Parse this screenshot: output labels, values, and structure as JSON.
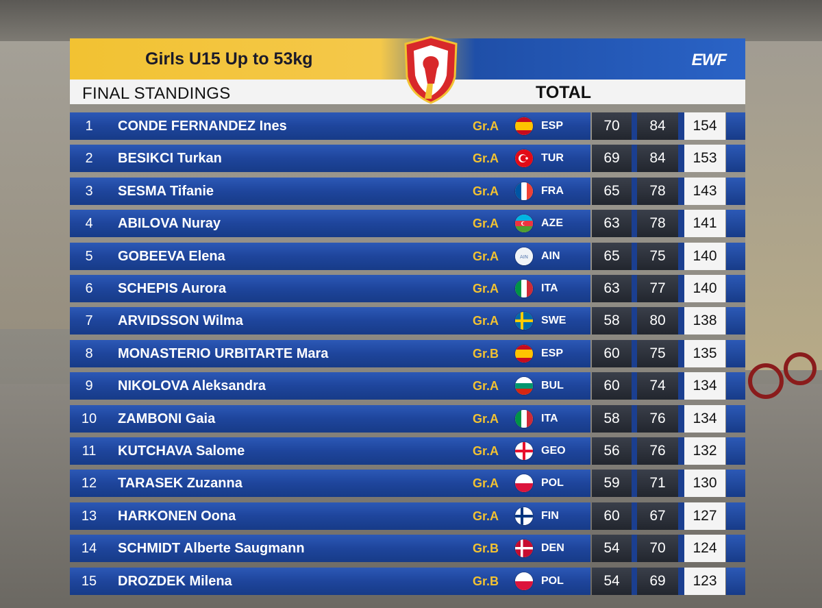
{
  "header": {
    "title": "Girls U15 Up to 53kg",
    "subtitle": "FINAL STANDINGS",
    "total_label": "TOTAL",
    "brand": "EWF"
  },
  "colors": {
    "gold": "#f2c232",
    "row_blue": "#1e459c",
    "cell_dark": "#2b2f38",
    "total_bg": "#f4f4f4"
  },
  "standings": [
    {
      "rank": "1",
      "name": "CONDE FERNANDEZ Ines",
      "group": "Gr.A",
      "flag_icon": "spain-flag-icon",
      "nation": "ESP",
      "snatch": "70",
      "cj": "84",
      "total": "154"
    },
    {
      "rank": "2",
      "name": "BESIKCI Turkan",
      "group": "Gr.A",
      "flag_icon": "turkey-flag-icon",
      "nation": "TUR",
      "snatch": "69",
      "cj": "84",
      "total": "153"
    },
    {
      "rank": "3",
      "name": "SESMA Tifanie",
      "group": "Gr.A",
      "flag_icon": "france-flag-icon",
      "nation": "FRA",
      "snatch": "65",
      "cj": "78",
      "total": "143"
    },
    {
      "rank": "4",
      "name": "ABILOVA Nuray",
      "group": "Gr.A",
      "flag_icon": "azerbaijan-flag-icon",
      "nation": "AZE",
      "snatch": "63",
      "cj": "78",
      "total": "141"
    },
    {
      "rank": "5",
      "name": "GOBEEVA Elena",
      "group": "Gr.A",
      "flag_icon": "ain-flag-icon",
      "nation": "AIN",
      "snatch": "65",
      "cj": "75",
      "total": "140"
    },
    {
      "rank": "6",
      "name": "SCHEPIS Aurora",
      "group": "Gr.A",
      "flag_icon": "italy-flag-icon",
      "nation": "ITA",
      "snatch": "63",
      "cj": "77",
      "total": "140"
    },
    {
      "rank": "7",
      "name": "ARVIDSSON Wilma",
      "group": "Gr.A",
      "flag_icon": "sweden-flag-icon",
      "nation": "SWE",
      "snatch": "58",
      "cj": "80",
      "total": "138"
    },
    {
      "rank": "8",
      "name": "MONASTERIO URBITARTE Mara",
      "group": "Gr.B",
      "flag_icon": "spain-flag-icon",
      "nation": "ESP",
      "snatch": "60",
      "cj": "75",
      "total": "135"
    },
    {
      "rank": "9",
      "name": "NIKOLOVA Aleksandra",
      "group": "Gr.A",
      "flag_icon": "bulgaria-flag-icon",
      "nation": "BUL",
      "snatch": "60",
      "cj": "74",
      "total": "134"
    },
    {
      "rank": "10",
      "name": "ZAMBONI Gaia",
      "group": "Gr.A",
      "flag_icon": "italy-flag-icon",
      "nation": "ITA",
      "snatch": "58",
      "cj": "76",
      "total": "134"
    },
    {
      "rank": "11",
      "name": "KUTCHAVA Salome",
      "group": "Gr.A",
      "flag_icon": "georgia-flag-icon",
      "nation": "GEO",
      "snatch": "56",
      "cj": "76",
      "total": "132"
    },
    {
      "rank": "12",
      "name": "TARASEK Zuzanna",
      "group": "Gr.A",
      "flag_icon": "poland-flag-icon",
      "nation": "POL",
      "snatch": "59",
      "cj": "71",
      "total": "130"
    },
    {
      "rank": "13",
      "name": "HARKONEN Oona",
      "group": "Gr.A",
      "flag_icon": "finland-flag-icon",
      "nation": "FIN",
      "snatch": "60",
      "cj": "67",
      "total": "127"
    },
    {
      "rank": "14",
      "name": "SCHMIDT Alberte Saugmann",
      "group": "Gr.B",
      "flag_icon": "denmark-flag-icon",
      "nation": "DEN",
      "snatch": "54",
      "cj": "70",
      "total": "124"
    },
    {
      "rank": "15",
      "name": "DROZDEK Milena",
      "group": "Gr.B",
      "flag_icon": "poland-flag-icon",
      "nation": "POL",
      "snatch": "54",
      "cj": "69",
      "total": "123"
    }
  ]
}
